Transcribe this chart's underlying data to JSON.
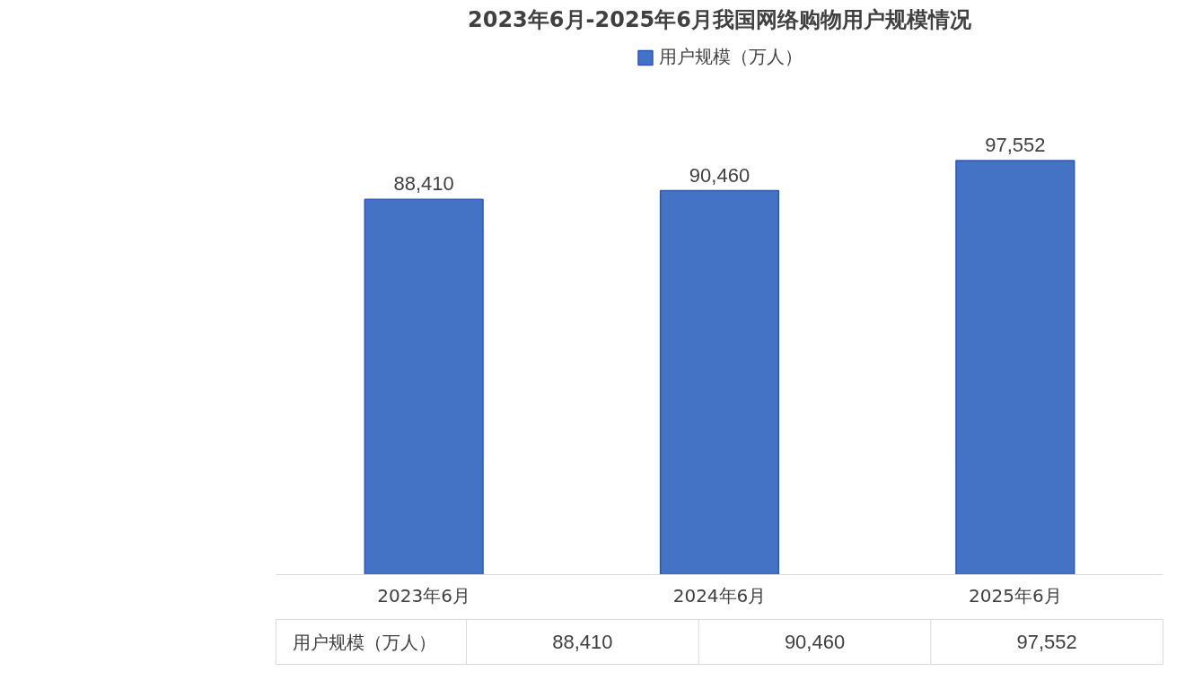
{
  "chart_data": {
    "type": "bar",
    "title": "2023年6月-2025年6月我国网络购物用户规模情况",
    "categories": [
      "2023年6月",
      "2024年6月",
      "2025年6月"
    ],
    "series": [
      {
        "name": "用户规模（万人）",
        "color": "#4472c4",
        "values": [
          88410,
          90460,
          97552
        ],
        "value_labels": [
          "88,410",
          "90,460",
          "97,552"
        ]
      }
    ],
    "legend": "top",
    "grid": false,
    "tick_labels": "x"
  }
}
